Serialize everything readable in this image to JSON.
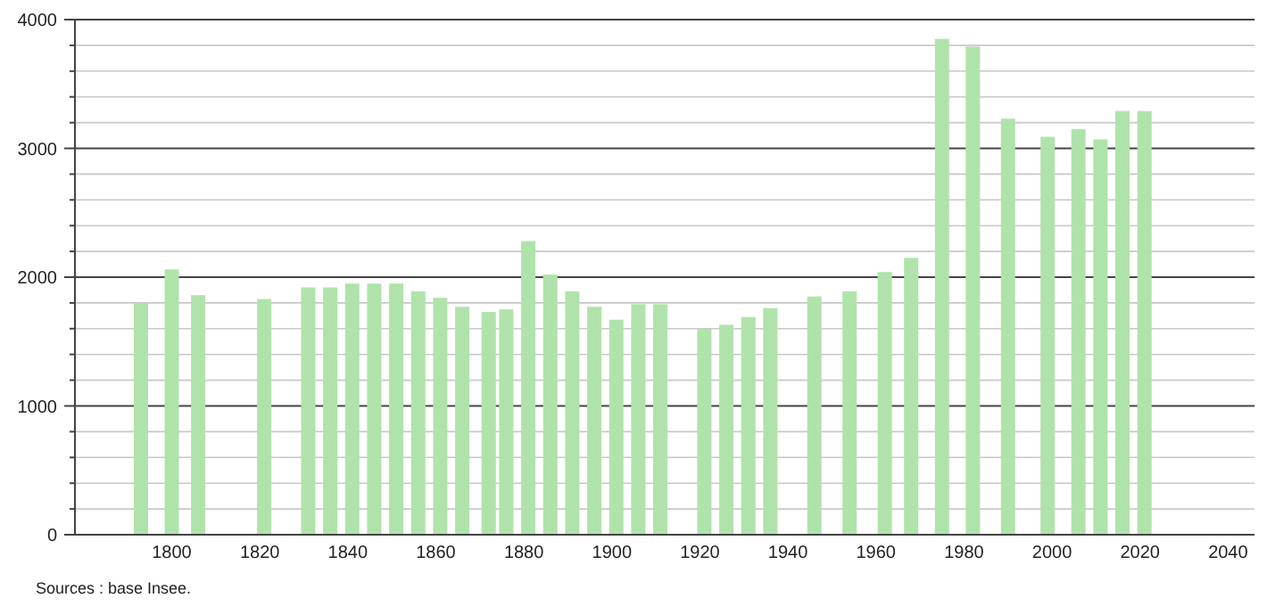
{
  "chart_data": {
    "type": "bar",
    "x": [
      1793,
      1800,
      1806,
      1821,
      1831,
      1836,
      1841,
      1846,
      1851,
      1856,
      1861,
      1866,
      1872,
      1876,
      1881,
      1886,
      1891,
      1896,
      1901,
      1906,
      1911,
      1921,
      1926,
      1931,
      1936,
      1946,
      1954,
      1962,
      1968,
      1975,
      1982,
      1990,
      1999,
      2006,
      2011,
      2016,
      2021
    ],
    "values": [
      1800,
      2060,
      1860,
      1830,
      1920,
      1920,
      1950,
      1950,
      1950,
      1890,
      1840,
      1770,
      1730,
      1750,
      2280,
      2020,
      1890,
      1770,
      1670,
      1790,
      1790,
      1600,
      1630,
      1690,
      1760,
      1850,
      1890,
      2040,
      2150,
      3850,
      3790,
      3230,
      3090,
      3150,
      3070,
      3290,
      3290
    ],
    "color": "#b0e3ab",
    "xlim": [
      1778,
      2046
    ],
    "xticks": [
      1800,
      1820,
      1840,
      1860,
      1880,
      1900,
      1920,
      1940,
      1960,
      1980,
      2000,
      2020,
      2040
    ],
    "ylim": [
      0,
      4000
    ],
    "yticks": [
      0,
      {
        "value": 200,
        "label": null
      },
      {
        "value": 400,
        "label": null
      },
      {
        "value": 600,
        "label": null
      },
      {
        "value": 800,
        "label": null
      },
      1000,
      {
        "value": 1200,
        "label": null
      },
      {
        "value": 1400,
        "label": null
      },
      {
        "value": 1600,
        "label": null
      },
      {
        "value": 1800,
        "label": null
      },
      2000,
      {
        "value": 2200,
        "label": null
      },
      {
        "value": 2400,
        "label": null
      },
      {
        "value": 2600,
        "label": null
      },
      {
        "value": 2800,
        "label": null
      },
      3000,
      {
        "value": 3200,
        "label": null
      },
      {
        "value": 3400,
        "label": null
      },
      {
        "value": 3600,
        "label": null
      },
      {
        "value": 3800,
        "label": null
      },
      4000
    ],
    "grid": "y",
    "annotations": [
      "Sources : base Insee."
    ]
  }
}
